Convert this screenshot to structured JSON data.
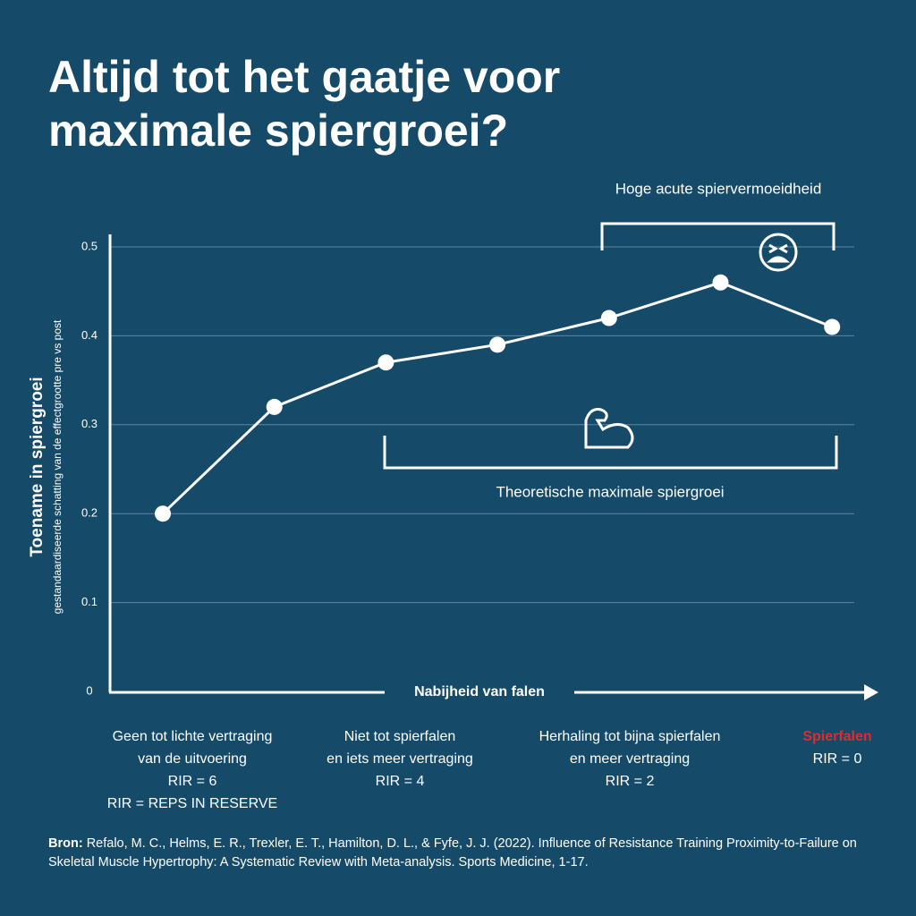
{
  "chart_data": {
    "type": "line",
    "title": [
      "Altijd tot het gaatje voor",
      "maximale spiergroei?"
    ],
    "y_label": "Toename in spiergroei",
    "y_sublabel": "gestandaardiseerde schatting van de effectgrootte pre vs post",
    "x_label": "Nabijheid van falen",
    "categories": [
      null,
      null,
      null,
      null,
      null,
      null,
      null
    ],
    "series": [
      {
        "name": null,
        "color": "#ffffff",
        "values": [
          0.2,
          0.32,
          0.37,
          0.39,
          0.42,
          0.46,
          0.41
        ]
      }
    ],
    "ylim": [
      0,
      0.5
    ],
    "yticks": [
      0,
      0.1,
      0.2,
      0.3,
      0.4,
      0.5
    ],
    "grid": true,
    "annotations": [
      {
        "text": "Hoge acute spiervermoeidheid"
      },
      {
        "text": "Theoretische maximale spiergroei"
      }
    ],
    "x_groups": [
      {
        "lines": [
          "Geen tot lichte vertraging",
          "van de uitvoering",
          "RIR = 6",
          "RIR = REPS IN RESERVE"
        ]
      },
      {
        "lines": [
          "Niet tot spierfalen",
          "en iets meer vertraging",
          "RIR = 4"
        ]
      },
      {
        "lines": [
          "Herhaling tot bijna spierfalen",
          "en meer vertraging",
          "RIR = 2"
        ]
      },
      {
        "lines": [
          "Spierfalen",
          "RIR = 0"
        ],
        "first_line_color": "#e02a2f"
      }
    ],
    "source": {
      "label": "Bron:",
      "text": "Refalo, M. C., Helms, E. R., Trexler, E. T., Hamilton, D. L., & Fyfe, J. J. (2022). Influence of Resistance Training Proximity-to-Failure on Skeletal Muscle Hypertrophy: A Systematic Review with Meta-analysis. Sports Medicine, 1-17."
    }
  }
}
